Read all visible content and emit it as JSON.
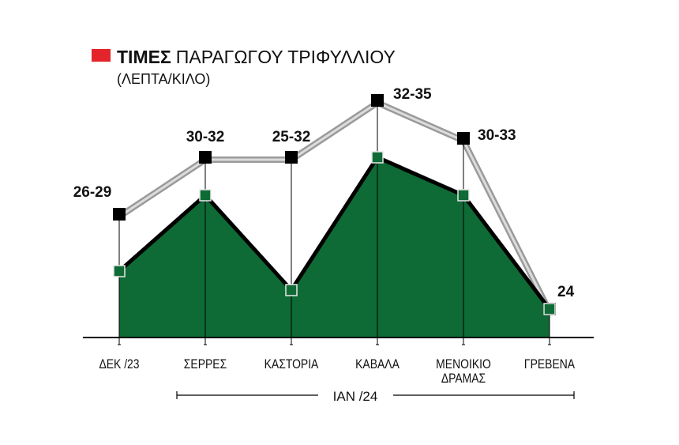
{
  "chart_data": {
    "type": "area",
    "title_bold": "ΤΙΜΕΣ",
    "title_rest": "ΠΑΡΑΓΩΓΟΥ ΤΡΙΦΥΛΛΙΟΥ",
    "subtitle": "(ΛΕΠΤΑ/ΚΙΛΟ)",
    "categories": [
      [
        "ΔΕΚ /23"
      ],
      [
        "ΣΕΡΡΕΣ"
      ],
      [
        "ΚΑΣΤΟΡΙΑ"
      ],
      [
        "ΚΑΒΑΛΑ"
      ],
      [
        "ΜΕΝΟΙΚΙΟ",
        "ΔΡΑΜΑΣ"
      ],
      [
        "ΓΡΕΒΕΝΑ"
      ]
    ],
    "series": [
      {
        "values": [
          29,
          32,
          32,
          35,
          33,
          24
        ],
        "color": "#000000"
      },
      {
        "values": [
          26,
          30,
          25,
          32,
          30,
          24
        ],
        "color": "#0e6b35"
      }
    ],
    "data_labels": [
      "26-29",
      "30-32",
      "25-32",
      "32-35",
      "30-33",
      "24"
    ],
    "group_label": "ΙΑΝ /24",
    "ylim": [
      22.5,
      36
    ],
    "grid": false,
    "colors": {
      "accent": "#e3242b",
      "area": "#0e6b35",
      "max_line": "#a8a8a8"
    }
  }
}
